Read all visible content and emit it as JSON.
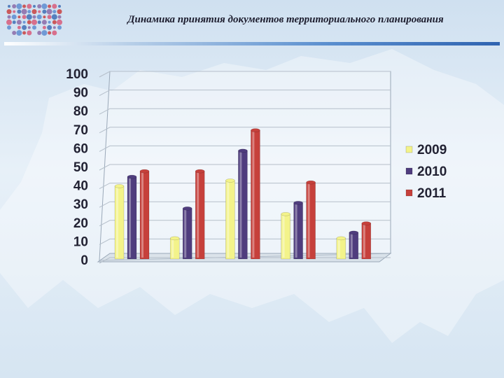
{
  "slide": {
    "title": "Динамика принятия документов территориального планирования"
  },
  "colors": {
    "title_rule": "#2f63b0",
    "series_2009": "#f3f38a",
    "series_2010": "#4f3d7e",
    "series_2011": "#c6403b"
  },
  "chart_data": {
    "type": "bar",
    "title": "",
    "xlabel": "",
    "ylabel": "",
    "categories": [
      "",
      "",
      "",
      "",
      ""
    ],
    "ylim": [
      0,
      100
    ],
    "yticks": [
      0,
      10,
      20,
      30,
      40,
      50,
      60,
      70,
      80,
      90,
      100
    ],
    "grid": true,
    "legend_position": "right",
    "series": [
      {
        "name": "2009",
        "color": "#f3f38a",
        "values": [
          38,
          10,
          41,
          23,
          10
        ]
      },
      {
        "name": "2010",
        "color": "#4f3d7e",
        "values": [
          43,
          26,
          57,
          29,
          13
        ]
      },
      {
        "name": "2011",
        "color": "#c6403b",
        "values": [
          46,
          46,
          68,
          40,
          18
        ]
      }
    ]
  }
}
